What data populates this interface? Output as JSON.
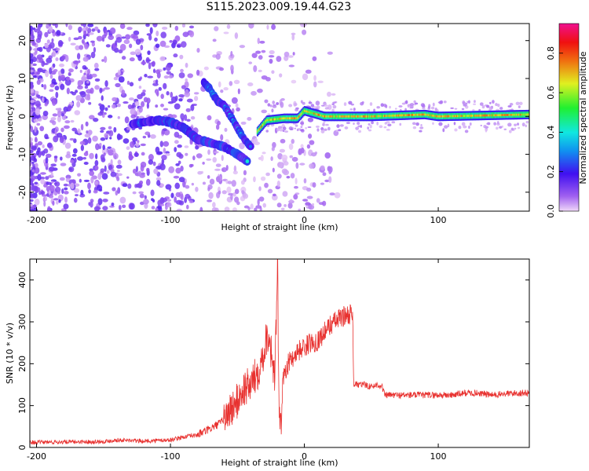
{
  "title": "S115.2023.009.19.44.G23",
  "chart_data": [
    {
      "type": "heatmap",
      "xlabel": "Height of straight line (km)",
      "ylabel": "Frequency (Hz)",
      "xlim": [
        -205,
        168
      ],
      "ylim": [
        -25,
        24.5
      ],
      "xticks": [
        -200,
        -100,
        0,
        100
      ],
      "yticks": [
        -20,
        -10,
        0,
        10,
        20
      ],
      "colorbar": {
        "label": "Normalized spectral amplitude",
        "range": [
          0.0,
          0.95
        ],
        "ticks": [
          "0.0",
          "0.2",
          "0.4",
          "0.6",
          "0.8"
        ],
        "colormap": "rainbow (violet-blue-cyan-green-yellow-red-magenta)"
      },
      "features": {
        "dominant_line": {
          "x": [
            -35,
            -28,
            -15,
            -5,
            0,
            5,
            15,
            50,
            90,
            100,
            168
          ],
          "y": [
            -4,
            -1,
            -0.5,
            -0.5,
            1.5,
            1,
            0,
            0,
            0.5,
            0,
            0.5
          ],
          "amplitude": 0.7
        },
        "lower_branch": {
          "x": [
            -128,
            -110,
            -100,
            -90,
            -80,
            -70,
            -60,
            -50,
            -42
          ],
          "y": [
            -2,
            -1,
            -1.5,
            -3,
            -6,
            -7,
            -8,
            -10,
            -12
          ],
          "amplitude": 0.4
        },
        "upper_branch": {
          "x": [
            -75,
            -70,
            -65,
            -60,
            -55,
            -50,
            -45,
            -40
          ],
          "y": [
            9,
            7,
            4,
            3,
            0,
            -3,
            -6,
            -8
          ],
          "amplitude": 0.35
        }
      }
    },
    {
      "type": "line",
      "xlabel": "Height of straight line (km)",
      "ylabel": "SNR (10 * v/v)",
      "xlim": [
        -205,
        168
      ],
      "ylim": [
        0,
        450
      ],
      "xticks": [
        -200,
        -100,
        0,
        100
      ],
      "yticks": [
        0,
        100,
        200,
        300,
        400
      ],
      "color": "#e8312f",
      "series": [
        {
          "x": [
            -205,
            -180,
            -150,
            -140,
            -120,
            -100,
            -90,
            -80,
            -70,
            -62,
            -55,
            -50,
            -45,
            -40,
            -35,
            -30,
            -28,
            -26,
            -24,
            -22,
            -20,
            -19,
            -18,
            -17,
            -16,
            -15,
            -12,
            -10,
            -5,
            0,
            5,
            10,
            15,
            20,
            25,
            30,
            35,
            36,
            37,
            40,
            45,
            50,
            55,
            58,
            60,
            70,
            80,
            90,
            100,
            110,
            120,
            130,
            140,
            150,
            160,
            168
          ],
          "y": [
            12,
            13,
            14,
            18,
            15,
            18,
            25,
            30,
            45,
            60,
            90,
            110,
            140,
            150,
            180,
            230,
            270,
            260,
            210,
            160,
            450,
            90,
            60,
            50,
            170,
            180,
            200,
            210,
            230,
            240,
            250,
            255,
            275,
            295,
            305,
            315,
            320,
            310,
            150,
            150,
            150,
            145,
            150,
            145,
            125,
            125,
            125,
            125,
            125,
            125,
            130,
            130,
            125,
            128,
            130,
            130
          ]
        }
      ]
    }
  ]
}
